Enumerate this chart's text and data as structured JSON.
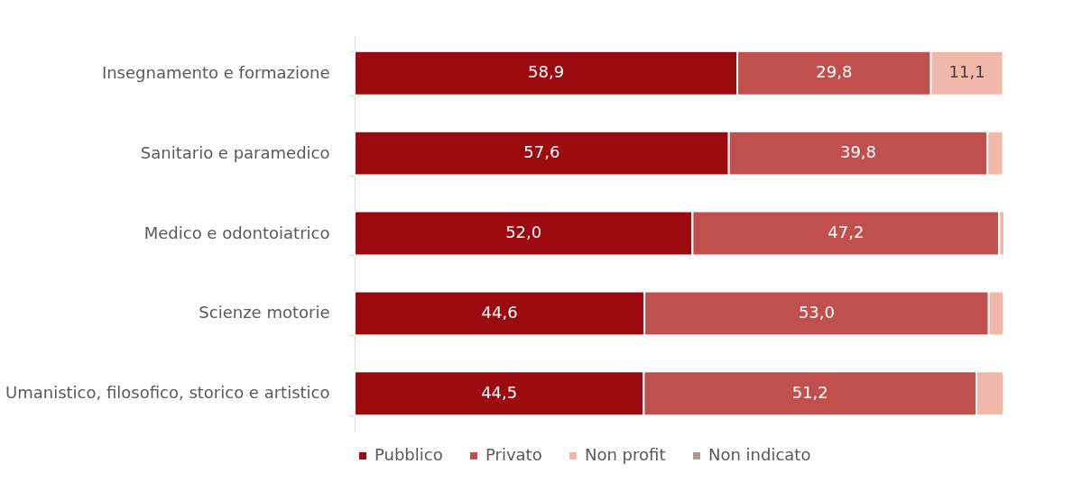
{
  "chart_data": {
    "type": "bar",
    "orientation": "horizontal",
    "stacked": true,
    "legend": "bottom",
    "categories": [
      "Insegnamento e formazione",
      "Sanitario e paramedico",
      "Medico e odontoiatrico",
      "Scienze motorie ",
      "Umanistico, filosofico, storico e artistico"
    ],
    "series": [
      {
        "name": "Pubblico",
        "color": "#9b0a0e",
        "values": [
          58.9,
          57.6,
          52.0,
          44.6,
          44.5
        ],
        "value_labels": [
          "58,9",
          "57,6",
          "52,0",
          "44,6",
          "44,5"
        ]
      },
      {
        "name": "Privato",
        "color": "#c0504d",
        "values": [
          29.8,
          39.8,
          47.2,
          53.0,
          51.2
        ],
        "value_labels": [
          "29,8",
          "39,8",
          "47,2",
          "53,0",
          "51,2"
        ]
      },
      {
        "name": "Non profit",
        "color": "#f0b8a8",
        "values": [
          11.1,
          2.4,
          0.8,
          2.3,
          4.2
        ],
        "value_labels": [
          "11,1",
          null,
          null,
          null,
          null
        ]
      },
      {
        "name": "Non indicato",
        "color": "#a89a8e",
        "values": [
          null,
          null,
          null,
          null,
          null
        ]
      }
    ]
  }
}
